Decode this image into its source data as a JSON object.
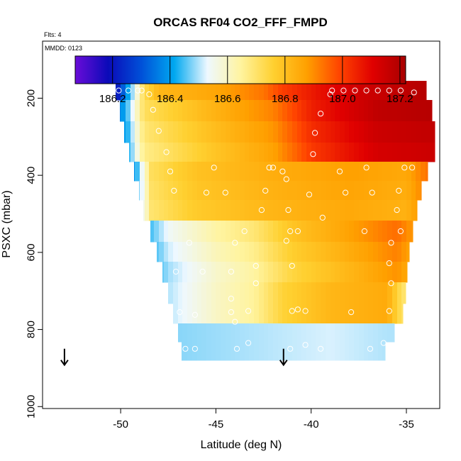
{
  "chart_data": {
    "type": "heatmap",
    "title": "ORCAS RF04 CO2_FFF_FMPD",
    "note_flights": "Flts: 4",
    "note_date": "MMDD: 0123",
    "xlabel": "Latitude (deg N)",
    "ylabel": "PSXC (mbar)",
    "xlim": [
      -54.1,
      -33.25
    ],
    "ylim": [
      1005,
      52
    ],
    "x_ticks": [
      -50,
      -45,
      -40,
      -35
    ],
    "x_tick_labels": [
      "-50",
      "-45",
      "-40",
      "-35"
    ],
    "y_ticks": [
      200,
      400,
      600,
      800,
      1000
    ],
    "y_tick_labels": [
      "200",
      "400",
      "600",
      "800",
      "1000"
    ],
    "colorbar": {
      "min": 186.07,
      "max": 187.22,
      "ticks": [
        186.2,
        186.4,
        186.6,
        186.8,
        187.0,
        187.2
      ],
      "tick_labels": [
        "186.2",
        "186.4",
        "186.6",
        "186.8",
        "187.0",
        "187.2"
      ],
      "stops": [
        "#6a0dd8",
        "#0a0ab8",
        "#0050d8",
        "#00a8f0",
        "#eef8ff",
        "#fff4a0",
        "#ffd030",
        "#ffa000",
        "#ff4400",
        "#e00000",
        "#a80000"
      ]
    },
    "grid": {
      "lat_start": -50.25,
      "lat_step": 0.25,
      "n_cols": 67,
      "rows": [
        {
          "p": 180,
          "lat_min": -50.25,
          "lat_max": -33.95
        },
        {
          "p": 230,
          "lat_min": -50.05,
          "lat_max": -33.65
        },
        {
          "p": 290,
          "lat_min": -49.8,
          "lat_max": -33.5
        },
        {
          "p": 340,
          "lat_min": -49.55,
          "lat_max": -33.5
        },
        {
          "p": 390,
          "lat_min": -49.3,
          "lat_max": -33.9
        },
        {
          "p": 440,
          "lat_min": -49.05,
          "lat_max": -34.2
        },
        {
          "p": 490,
          "lat_min": -48.8,
          "lat_max": -34.45
        },
        {
          "p": 545,
          "lat_min": -48.45,
          "lat_max": -34.65
        },
        {
          "p": 600,
          "lat_min": -48.1,
          "lat_max": -34.85
        },
        {
          "p": 650,
          "lat_min": -47.8,
          "lat_max": -34.95
        },
        {
          "p": 705,
          "lat_min": -47.5,
          "lat_max": -35.05
        },
        {
          "p": 760,
          "lat_min": -47.25,
          "lat_max": -35.2
        },
        {
          "p": 810,
          "lat_min": -47.0,
          "lat_max": -35.65
        },
        {
          "p": 855,
          "lat_min": -46.8,
          "lat_max": -36.1
        }
      ]
    },
    "samples": [
      {
        "lat": -50.1,
        "p": 180
      },
      {
        "lat": -49.6,
        "p": 180
      },
      {
        "lat": -49.1,
        "p": 180
      },
      {
        "lat": -48.9,
        "p": 180
      },
      {
        "lat": -48.5,
        "p": 190
      },
      {
        "lat": -39.0,
        "p": 190
      },
      {
        "lat": -38.9,
        "p": 180
      },
      {
        "lat": -38.3,
        "p": 180
      },
      {
        "lat": -37.7,
        "p": 180
      },
      {
        "lat": -37.1,
        "p": 180
      },
      {
        "lat": -36.5,
        "p": 180
      },
      {
        "lat": -35.9,
        "p": 180
      },
      {
        "lat": -35.3,
        "p": 180
      },
      {
        "lat": -34.6,
        "p": 185
      },
      {
        "lat": -48.3,
        "p": 230
      },
      {
        "lat": -39.5,
        "p": 240
      },
      {
        "lat": -48.0,
        "p": 285
      },
      {
        "lat": -39.8,
        "p": 290
      },
      {
        "lat": -47.6,
        "p": 340
      },
      {
        "lat": -39.9,
        "p": 345
      },
      {
        "lat": -47.4,
        "p": 390
      },
      {
        "lat": -45.1,
        "p": 380
      },
      {
        "lat": -42.2,
        "p": 380
      },
      {
        "lat": -42.0,
        "p": 380
      },
      {
        "lat": -41.5,
        "p": 390
      },
      {
        "lat": -38.5,
        "p": 390
      },
      {
        "lat": -37.1,
        "p": 380
      },
      {
        "lat": -35.1,
        "p": 380
      },
      {
        "lat": -34.7,
        "p": 380
      },
      {
        "lat": -47.2,
        "p": 440
      },
      {
        "lat": -45.5,
        "p": 445
      },
      {
        "lat": -44.5,
        "p": 445
      },
      {
        "lat": -42.4,
        "p": 440
      },
      {
        "lat": -41.3,
        "p": 410
      },
      {
        "lat": -40.1,
        "p": 450
      },
      {
        "lat": -38.2,
        "p": 445
      },
      {
        "lat": -36.8,
        "p": 445
      },
      {
        "lat": -35.4,
        "p": 440
      },
      {
        "lat": -42.6,
        "p": 490
      },
      {
        "lat": -41.2,
        "p": 490
      },
      {
        "lat": -39.4,
        "p": 510
      },
      {
        "lat": -35.5,
        "p": 490
      },
      {
        "lat": -43.5,
        "p": 545
      },
      {
        "lat": -41.1,
        "p": 545
      },
      {
        "lat": -40.7,
        "p": 545
      },
      {
        "lat": -37.2,
        "p": 545
      },
      {
        "lat": -35.3,
        "p": 545
      },
      {
        "lat": -46.4,
        "p": 575
      },
      {
        "lat": -44.0,
        "p": 575
      },
      {
        "lat": -41.3,
        "p": 570
      },
      {
        "lat": -35.8,
        "p": 575
      },
      {
        "lat": -47.1,
        "p": 650
      },
      {
        "lat": -45.7,
        "p": 650
      },
      {
        "lat": -44.2,
        "p": 650
      },
      {
        "lat": -42.9,
        "p": 635
      },
      {
        "lat": -41.0,
        "p": 635
      },
      {
        "lat": -35.9,
        "p": 628
      },
      {
        "lat": -42.9,
        "p": 680
      },
      {
        "lat": -35.8,
        "p": 680
      },
      {
        "lat": -46.9,
        "p": 755
      },
      {
        "lat": -46.1,
        "p": 762
      },
      {
        "lat": -44.2,
        "p": 755
      },
      {
        "lat": -43.3,
        "p": 752
      },
      {
        "lat": -41.0,
        "p": 752
      },
      {
        "lat": -40.7,
        "p": 748
      },
      {
        "lat": -40.3,
        "p": 752
      },
      {
        "lat": -37.9,
        "p": 755
      },
      {
        "lat": -35.9,
        "p": 752
      },
      {
        "lat": -44.2,
        "p": 720
      },
      {
        "lat": -44.0,
        "p": 780
      },
      {
        "lat": -46.6,
        "p": 850
      },
      {
        "lat": -46.1,
        "p": 850
      },
      {
        "lat": -43.9,
        "p": 850
      },
      {
        "lat": -43.3,
        "p": 835
      },
      {
        "lat": -41.1,
        "p": 850
      },
      {
        "lat": -40.3,
        "p": 840
      },
      {
        "lat": -39.5,
        "p": 850
      },
      {
        "lat": -36.9,
        "p": 850
      },
      {
        "lat": -36.2,
        "p": 835
      }
    ],
    "arrows": [
      {
        "lat": -52.95,
        "p": 872
      },
      {
        "lat": -41.45,
        "p": 872
      }
    ]
  }
}
